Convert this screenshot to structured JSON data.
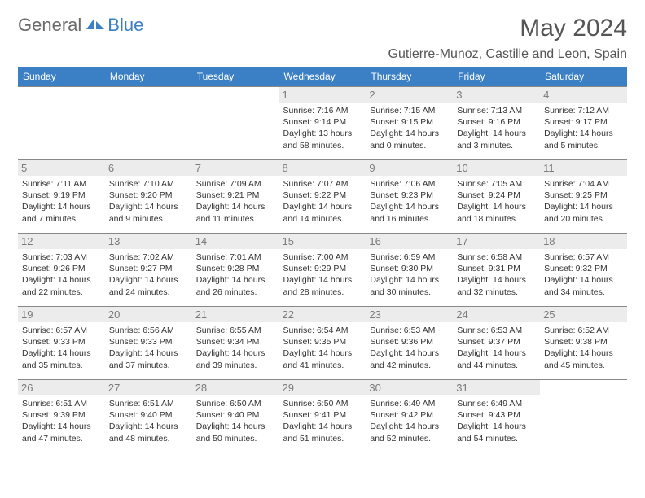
{
  "logo": {
    "part1": "General",
    "part2": "Blue"
  },
  "title": "May 2024",
  "location": "Gutierre-Munoz, Castille and Leon, Spain",
  "colors": {
    "header_bg": "#3b7fc4",
    "header_text": "#ffffff",
    "daynum_bg": "#ececec",
    "daynum_color": "#7a7a7a",
    "border": "#888888",
    "logo_gray": "#6b6b6b",
    "logo_blue": "#3b7fc4"
  },
  "weekdays": [
    "Sunday",
    "Monday",
    "Tuesday",
    "Wednesday",
    "Thursday",
    "Friday",
    "Saturday"
  ],
  "weeks": [
    [
      {
        "n": "",
        "sr": "",
        "ss": "",
        "dl": ""
      },
      {
        "n": "",
        "sr": "",
        "ss": "",
        "dl": ""
      },
      {
        "n": "",
        "sr": "",
        "ss": "",
        "dl": ""
      },
      {
        "n": "1",
        "sr": "Sunrise: 7:16 AM",
        "ss": "Sunset: 9:14 PM",
        "dl": "Daylight: 13 hours and 58 minutes."
      },
      {
        "n": "2",
        "sr": "Sunrise: 7:15 AM",
        "ss": "Sunset: 9:15 PM",
        "dl": "Daylight: 14 hours and 0 minutes."
      },
      {
        "n": "3",
        "sr": "Sunrise: 7:13 AM",
        "ss": "Sunset: 9:16 PM",
        "dl": "Daylight: 14 hours and 3 minutes."
      },
      {
        "n": "4",
        "sr": "Sunrise: 7:12 AM",
        "ss": "Sunset: 9:17 PM",
        "dl": "Daylight: 14 hours and 5 minutes."
      }
    ],
    [
      {
        "n": "5",
        "sr": "Sunrise: 7:11 AM",
        "ss": "Sunset: 9:19 PM",
        "dl": "Daylight: 14 hours and 7 minutes."
      },
      {
        "n": "6",
        "sr": "Sunrise: 7:10 AM",
        "ss": "Sunset: 9:20 PM",
        "dl": "Daylight: 14 hours and 9 minutes."
      },
      {
        "n": "7",
        "sr": "Sunrise: 7:09 AM",
        "ss": "Sunset: 9:21 PM",
        "dl": "Daylight: 14 hours and 11 minutes."
      },
      {
        "n": "8",
        "sr": "Sunrise: 7:07 AM",
        "ss": "Sunset: 9:22 PM",
        "dl": "Daylight: 14 hours and 14 minutes."
      },
      {
        "n": "9",
        "sr": "Sunrise: 7:06 AM",
        "ss": "Sunset: 9:23 PM",
        "dl": "Daylight: 14 hours and 16 minutes."
      },
      {
        "n": "10",
        "sr": "Sunrise: 7:05 AM",
        "ss": "Sunset: 9:24 PM",
        "dl": "Daylight: 14 hours and 18 minutes."
      },
      {
        "n": "11",
        "sr": "Sunrise: 7:04 AM",
        "ss": "Sunset: 9:25 PM",
        "dl": "Daylight: 14 hours and 20 minutes."
      }
    ],
    [
      {
        "n": "12",
        "sr": "Sunrise: 7:03 AM",
        "ss": "Sunset: 9:26 PM",
        "dl": "Daylight: 14 hours and 22 minutes."
      },
      {
        "n": "13",
        "sr": "Sunrise: 7:02 AM",
        "ss": "Sunset: 9:27 PM",
        "dl": "Daylight: 14 hours and 24 minutes."
      },
      {
        "n": "14",
        "sr": "Sunrise: 7:01 AM",
        "ss": "Sunset: 9:28 PM",
        "dl": "Daylight: 14 hours and 26 minutes."
      },
      {
        "n": "15",
        "sr": "Sunrise: 7:00 AM",
        "ss": "Sunset: 9:29 PM",
        "dl": "Daylight: 14 hours and 28 minutes."
      },
      {
        "n": "16",
        "sr": "Sunrise: 6:59 AM",
        "ss": "Sunset: 9:30 PM",
        "dl": "Daylight: 14 hours and 30 minutes."
      },
      {
        "n": "17",
        "sr": "Sunrise: 6:58 AM",
        "ss": "Sunset: 9:31 PM",
        "dl": "Daylight: 14 hours and 32 minutes."
      },
      {
        "n": "18",
        "sr": "Sunrise: 6:57 AM",
        "ss": "Sunset: 9:32 PM",
        "dl": "Daylight: 14 hours and 34 minutes."
      }
    ],
    [
      {
        "n": "19",
        "sr": "Sunrise: 6:57 AM",
        "ss": "Sunset: 9:33 PM",
        "dl": "Daylight: 14 hours and 35 minutes."
      },
      {
        "n": "20",
        "sr": "Sunrise: 6:56 AM",
        "ss": "Sunset: 9:33 PM",
        "dl": "Daylight: 14 hours and 37 minutes."
      },
      {
        "n": "21",
        "sr": "Sunrise: 6:55 AM",
        "ss": "Sunset: 9:34 PM",
        "dl": "Daylight: 14 hours and 39 minutes."
      },
      {
        "n": "22",
        "sr": "Sunrise: 6:54 AM",
        "ss": "Sunset: 9:35 PM",
        "dl": "Daylight: 14 hours and 41 minutes."
      },
      {
        "n": "23",
        "sr": "Sunrise: 6:53 AM",
        "ss": "Sunset: 9:36 PM",
        "dl": "Daylight: 14 hours and 42 minutes."
      },
      {
        "n": "24",
        "sr": "Sunrise: 6:53 AM",
        "ss": "Sunset: 9:37 PM",
        "dl": "Daylight: 14 hours and 44 minutes."
      },
      {
        "n": "25",
        "sr": "Sunrise: 6:52 AM",
        "ss": "Sunset: 9:38 PM",
        "dl": "Daylight: 14 hours and 45 minutes."
      }
    ],
    [
      {
        "n": "26",
        "sr": "Sunrise: 6:51 AM",
        "ss": "Sunset: 9:39 PM",
        "dl": "Daylight: 14 hours and 47 minutes."
      },
      {
        "n": "27",
        "sr": "Sunrise: 6:51 AM",
        "ss": "Sunset: 9:40 PM",
        "dl": "Daylight: 14 hours and 48 minutes."
      },
      {
        "n": "28",
        "sr": "Sunrise: 6:50 AM",
        "ss": "Sunset: 9:40 PM",
        "dl": "Daylight: 14 hours and 50 minutes."
      },
      {
        "n": "29",
        "sr": "Sunrise: 6:50 AM",
        "ss": "Sunset: 9:41 PM",
        "dl": "Daylight: 14 hours and 51 minutes."
      },
      {
        "n": "30",
        "sr": "Sunrise: 6:49 AM",
        "ss": "Sunset: 9:42 PM",
        "dl": "Daylight: 14 hours and 52 minutes."
      },
      {
        "n": "31",
        "sr": "Sunrise: 6:49 AM",
        "ss": "Sunset: 9:43 PM",
        "dl": "Daylight: 14 hours and 54 minutes."
      },
      {
        "n": "",
        "sr": "",
        "ss": "",
        "dl": ""
      }
    ]
  ]
}
